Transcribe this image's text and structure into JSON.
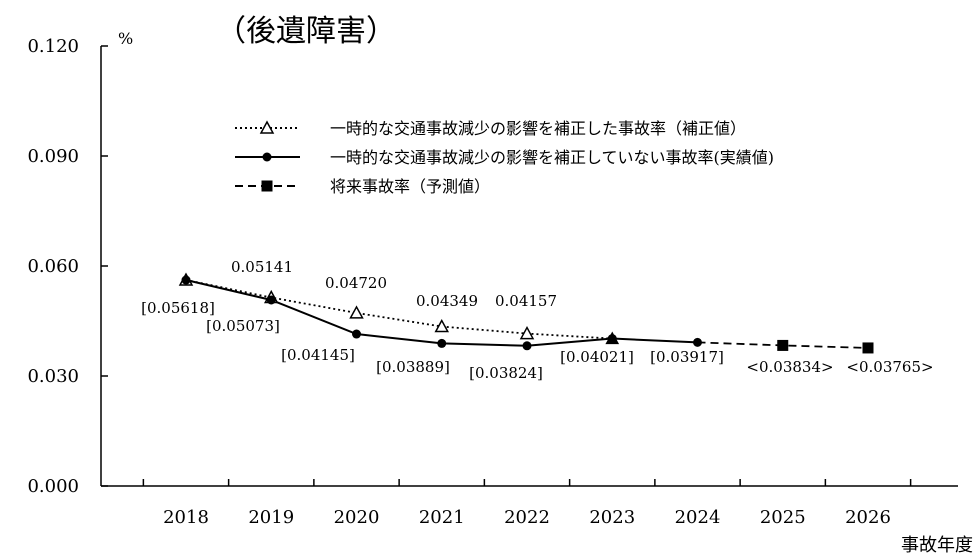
{
  "chart_data": {
    "type": "line",
    "title": "（後遺障害）",
    "ylabel": "%",
    "xlabel": "事故年度",
    "ylim": [
      0,
      0.12
    ],
    "yticks": [
      "0.000",
      "0.030",
      "0.060",
      "0.090",
      "0.120"
    ],
    "categories": [
      "2018",
      "2019",
      "2020",
      "2021",
      "2022",
      "2023",
      "2024",
      "2025",
      "2026"
    ],
    "grid": false,
    "legend_position": "top-center",
    "series": [
      {
        "name": "一時的な交通事故減少の影響を補正した事故率（補正値）",
        "style": "dotted",
        "marker": "open-triangle",
        "x": [
          "2018",
          "2019",
          "2020",
          "2021",
          "2022",
          "2023"
        ],
        "values": [
          0.05618,
          0.05141,
          0.0472,
          0.04349,
          0.04157,
          0.04021
        ],
        "labels": [
          "",
          "0.05141",
          "0.04720",
          "0.04349",
          "0.04157",
          ""
        ]
      },
      {
        "name": "一時的な交通事故減少の影響を補正していない事故率(実績値)",
        "style": "solid",
        "marker": "filled-circle",
        "x": [
          "2018",
          "2019",
          "2020",
          "2021",
          "2022",
          "2023",
          "2024"
        ],
        "values": [
          0.05618,
          0.05073,
          0.04145,
          0.03889,
          0.03824,
          0.04021,
          0.03917
        ],
        "labels": [
          "[0.05618]",
          "[0.05073]",
          "[0.04145]",
          "[0.03889]",
          "[0.03824]",
          "[0.04021]",
          "[0.03917]"
        ]
      },
      {
        "name": "将来事故率（予測値）",
        "style": "dashed",
        "marker": "filled-square",
        "x": [
          "2024",
          "2025",
          "2026"
        ],
        "values": [
          0.03917,
          0.03834,
          0.03765
        ],
        "labels": [
          "",
          "<0.03834>",
          "<0.03765>"
        ]
      }
    ],
    "colors": {
      "line": "#000000",
      "background": "#ffffff"
    }
  }
}
